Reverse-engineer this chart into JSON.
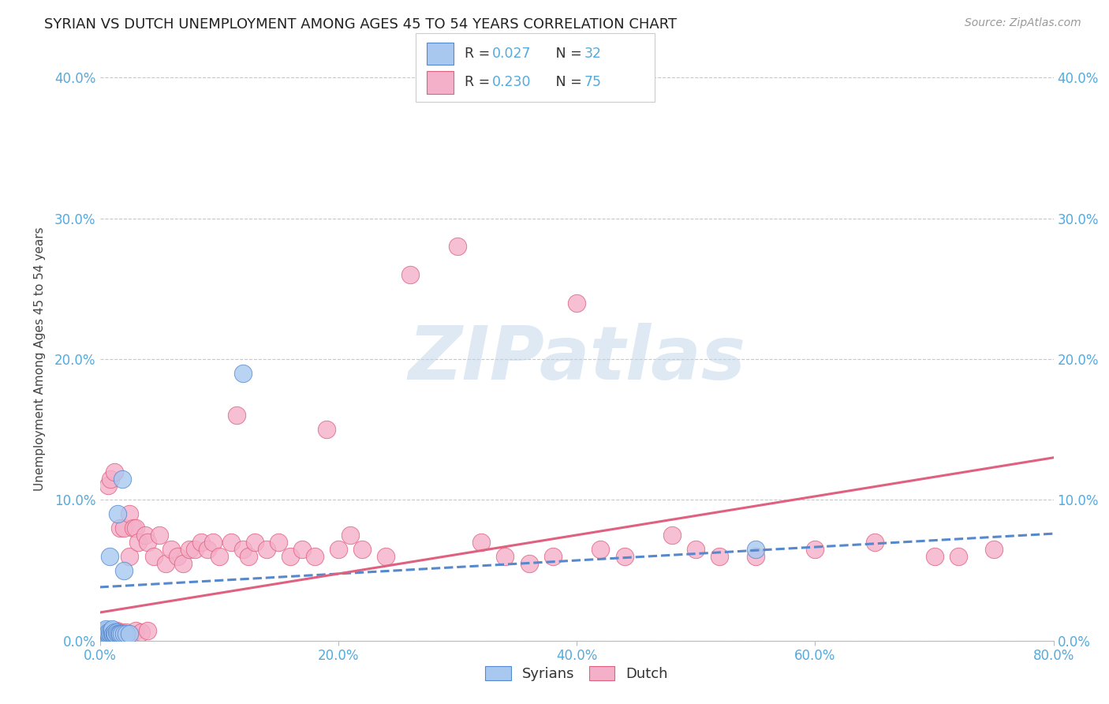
{
  "title": "SYRIAN VS DUTCH UNEMPLOYMENT AMONG AGES 45 TO 54 YEARS CORRELATION CHART",
  "source": "Source: ZipAtlas.com",
  "ylabel": "Unemployment Among Ages 45 to 54 years",
  "xlim": [
    0.0,
    0.8
  ],
  "ylim": [
    0.0,
    0.4
  ],
  "xticks": [
    0.0,
    0.2,
    0.4,
    0.6,
    0.8
  ],
  "yticks": [
    0.0,
    0.1,
    0.2,
    0.3,
    0.4
  ],
  "xtick_labels": [
    "0.0%",
    "20.0%",
    "40.0%",
    "60.0%",
    "80.0%"
  ],
  "ytick_labels": [
    "0.0%",
    "10.0%",
    "20.0%",
    "30.0%",
    "40.0%"
  ],
  "background_color": "#ffffff",
  "grid_color": "#c8c8c8",
  "watermark": "ZIPatlas",
  "syrians_fill": "#a8c8f0",
  "syrians_edge": "#5588cc",
  "dutch_fill": "#f4b0c8",
  "dutch_edge": "#e06080",
  "syrians_line_color": "#5588cc",
  "dutch_line_color": "#e06080",
  "tick_color": "#55aadd",
  "syrians_x": [
    0.005,
    0.005,
    0.005,
    0.005,
    0.005,
    0.007,
    0.007,
    0.008,
    0.008,
    0.009,
    0.01,
    0.01,
    0.01,
    0.01,
    0.01,
    0.011,
    0.012,
    0.012,
    0.013,
    0.014,
    0.015,
    0.015,
    0.016,
    0.017,
    0.018,
    0.019,
    0.02,
    0.02,
    0.022,
    0.025,
    0.12,
    0.55
  ],
  "syrians_y": [
    0.005,
    0.006,
    0.007,
    0.007,
    0.008,
    0.005,
    0.006,
    0.006,
    0.06,
    0.005,
    0.005,
    0.006,
    0.007,
    0.007,
    0.008,
    0.005,
    0.005,
    0.006,
    0.005,
    0.006,
    0.005,
    0.09,
    0.005,
    0.005,
    0.005,
    0.115,
    0.005,
    0.05,
    0.005,
    0.005,
    0.19,
    0.065
  ],
  "dutch_x": [
    0.005,
    0.005,
    0.007,
    0.008,
    0.009,
    0.01,
    0.01,
    0.011,
    0.012,
    0.013,
    0.014,
    0.015,
    0.015,
    0.016,
    0.017,
    0.018,
    0.019,
    0.02,
    0.02,
    0.022,
    0.025,
    0.025,
    0.028,
    0.03,
    0.03,
    0.032,
    0.035,
    0.038,
    0.04,
    0.04,
    0.045,
    0.05,
    0.055,
    0.06,
    0.065,
    0.07,
    0.075,
    0.08,
    0.085,
    0.09,
    0.095,
    0.1,
    0.11,
    0.115,
    0.12,
    0.125,
    0.13,
    0.14,
    0.15,
    0.16,
    0.17,
    0.18,
    0.19,
    0.2,
    0.21,
    0.22,
    0.24,
    0.26,
    0.3,
    0.32,
    0.34,
    0.36,
    0.38,
    0.4,
    0.42,
    0.44,
    0.48,
    0.5,
    0.52,
    0.55,
    0.6,
    0.65,
    0.7,
    0.72,
    0.75
  ],
  "dutch_y": [
    0.005,
    0.006,
    0.11,
    0.005,
    0.115,
    0.007,
    0.006,
    0.005,
    0.12,
    0.006,
    0.007,
    0.005,
    0.006,
    0.005,
    0.08,
    0.005,
    0.006,
    0.005,
    0.08,
    0.006,
    0.09,
    0.06,
    0.08,
    0.007,
    0.08,
    0.07,
    0.006,
    0.075,
    0.007,
    0.07,
    0.06,
    0.075,
    0.055,
    0.065,
    0.06,
    0.055,
    0.065,
    0.065,
    0.07,
    0.065,
    0.07,
    0.06,
    0.07,
    0.16,
    0.065,
    0.06,
    0.07,
    0.065,
    0.07,
    0.06,
    0.065,
    0.06,
    0.15,
    0.065,
    0.075,
    0.065,
    0.06,
    0.26,
    0.28,
    0.07,
    0.06,
    0.055,
    0.06,
    0.24,
    0.065,
    0.06,
    0.075,
    0.065,
    0.06,
    0.06,
    0.065,
    0.07,
    0.06,
    0.06,
    0.065
  ],
  "syr_trend_x0": 0.0,
  "syr_trend_y0": 0.038,
  "syr_trend_x1": 0.8,
  "syr_trend_y1": 0.076,
  "dutch_trend_x0": 0.0,
  "dutch_trend_y0": 0.02,
  "dutch_trend_x1": 0.8,
  "dutch_trend_y1": 0.13
}
